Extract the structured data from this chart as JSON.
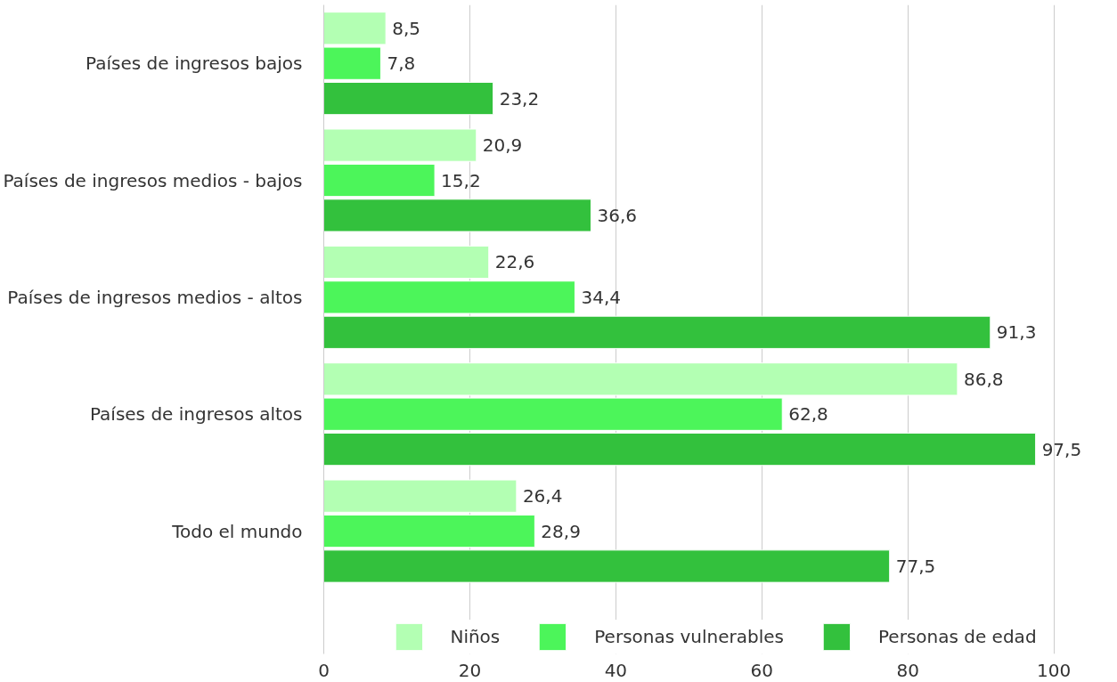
{
  "chart_data": {
    "type": "bar",
    "orientation": "horizontal",
    "categories": [
      "Países de ingresos bajos",
      "Países de ingresos medios - bajos",
      "Países de ingresos medios - altos",
      "Países de ingresos altos",
      "Todo el mundo"
    ],
    "series": [
      {
        "name": "Niños",
        "color": "#b3ffb3",
        "values": [
          8.5,
          20.9,
          22.6,
          86.8,
          26.4
        ],
        "value_labels": [
          "8,5",
          "20,9",
          "22,6",
          "86,8",
          "26,4"
        ]
      },
      {
        "name": "Personas vulnerables",
        "color": "#4cf55a",
        "values": [
          7.8,
          15.2,
          34.4,
          62.8,
          28.9
        ],
        "value_labels": [
          "7,8",
          "15,2",
          "34,4",
          "62,8",
          "28,9"
        ]
      },
      {
        "name": "Personas de edad",
        "color": "#33c13d",
        "values": [
          23.2,
          36.6,
          91.3,
          97.5,
          77.5
        ],
        "value_labels": [
          "23,2",
          "36,6",
          "91,3",
          "97,5",
          "77,5"
        ]
      }
    ],
    "xlim": [
      0,
      100
    ],
    "xticks": [
      0,
      20,
      40,
      60,
      80,
      100
    ],
    "grid": "x",
    "legend": "bottom"
  }
}
